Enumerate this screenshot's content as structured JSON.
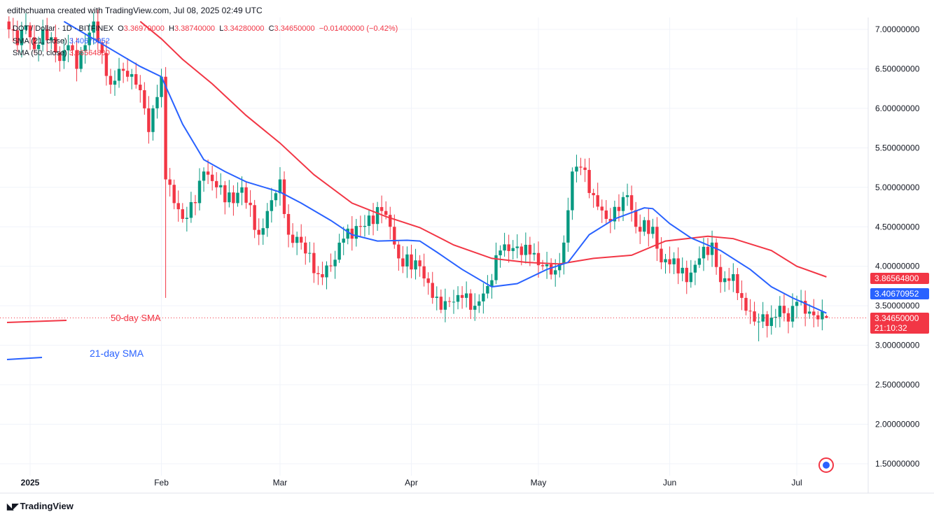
{
  "credit": "edithchuama created with TradingView.com, Jul 08, 2025 02:49 UTC",
  "legend": {
    "symbol": "DOT / Dollar · 1D · BITFINEX",
    "o_label": "O",
    "o": "3.36970000",
    "h_label": "H",
    "h": "3.38740000",
    "l_label": "L",
    "l": "3.34280000",
    "c_label": "C",
    "c": "3.34650000",
    "change": "−0.01400000 (−0.42%)",
    "sma21_label": "SMA (21, close)",
    "sma21_value": "3.40670952",
    "sma50_label": "SMA (50, close)",
    "sma50_value": "3.86564800"
  },
  "annotations": {
    "sma50": "50-day SMA",
    "sma21": "21-day SMA"
  },
  "tags": {
    "sma50": "3.86564800",
    "sma21": "3.40670952",
    "price": "3.34650000",
    "countdown": "21:10:32"
  },
  "footer": {
    "brand": "TradingView"
  },
  "colors": {
    "up": "#089981",
    "down": "#f23645",
    "sma21": "#2962ff",
    "sma50": "#f23645"
  },
  "chart_data": {
    "type": "candlestick",
    "title": "DOT / Dollar · 1D · BITFINEX",
    "ylim": [
      1.5,
      7.0
    ],
    "yticks": [
      "7.00000000",
      "6.50000000",
      "6.00000000",
      "5.50000000",
      "5.00000000",
      "4.50000000",
      "4.00000000",
      "3.50000000",
      "3.00000000",
      "2.50000000",
      "2.00000000",
      "1.50000000"
    ],
    "xticks": [
      {
        "label": "2025",
        "day": 0
      },
      {
        "label": "Feb",
        "day": 31
      },
      {
        "label": "Mar",
        "day": 59
      },
      {
        "label": "Apr",
        "day": 90
      },
      {
        "label": "May",
        "day": 120
      },
      {
        "label": "Jun",
        "day": 151
      },
      {
        "label": "Jul",
        "day": 181
      }
    ],
    "day_origin": "2025-01-01",
    "close_waypoints": [
      [
        -5,
        7.0
      ],
      [
        -3,
        6.8
      ],
      [
        -1,
        7.05
      ],
      [
        1,
        6.75
      ],
      [
        3,
        7.0
      ],
      [
        5,
        6.9
      ],
      [
        7,
        6.6
      ],
      [
        9,
        6.8
      ],
      [
        11,
        6.5
      ],
      [
        13,
        6.8
      ],
      [
        15,
        7.1
      ],
      [
        17,
        6.7
      ],
      [
        19,
        6.3
      ],
      [
        21,
        6.5
      ],
      [
        23,
        6.4
      ],
      [
        25,
        6.3
      ],
      [
        27,
        6.0
      ],
      [
        28,
        5.7
      ],
      [
        29,
        6.0
      ],
      [
        31,
        6.4
      ],
      [
        32,
        5.1
      ],
      [
        34,
        4.8
      ],
      [
        36,
        4.6
      ],
      [
        39,
        4.8
      ],
      [
        41,
        5.2
      ],
      [
        44,
        5.0
      ],
      [
        48,
        4.8
      ],
      [
        50,
        5.0
      ],
      [
        54,
        4.4
      ],
      [
        56,
        4.7
      ],
      [
        59,
        5.1
      ],
      [
        61,
        4.4
      ],
      [
        64,
        4.3
      ],
      [
        68,
        3.9
      ],
      [
        71,
        4.0
      ],
      [
        74,
        4.35
      ],
      [
        78,
        4.5
      ],
      [
        83,
        4.7
      ],
      [
        85,
        4.5
      ],
      [
        87,
        4.1
      ],
      [
        92,
        4.0
      ],
      [
        95,
        3.6
      ],
      [
        97,
        3.45
      ],
      [
        99,
        3.55
      ],
      [
        102,
        3.6
      ],
      [
        105,
        3.5
      ],
      [
        108,
        3.75
      ],
      [
        111,
        4.2
      ],
      [
        115,
        4.25
      ],
      [
        118,
        4.15
      ],
      [
        121,
        4.0
      ],
      [
        124,
        3.95
      ],
      [
        126,
        4.3
      ],
      [
        128,
        5.2
      ],
      [
        130,
        5.25
      ],
      [
        133,
        4.9
      ],
      [
        136,
        4.6
      ],
      [
        139,
        4.7
      ],
      [
        141,
        4.9
      ],
      [
        143,
        4.5
      ],
      [
        147,
        4.5
      ],
      [
        149,
        4.05
      ],
      [
        152,
        4.1
      ],
      [
        155,
        3.8
      ],
      [
        158,
        4.1
      ],
      [
        161,
        4.3
      ],
      [
        163,
        3.8
      ],
      [
        166,
        3.9
      ],
      [
        168,
        3.6
      ],
      [
        171,
        3.3
      ],
      [
        172,
        3.3
      ],
      [
        175,
        3.35
      ],
      [
        177,
        3.5
      ],
      [
        179,
        3.3
      ],
      [
        181,
        3.55
      ],
      [
        183,
        3.4
      ],
      [
        188,
        3.3465
      ]
    ],
    "low_overrides": [
      [
        32,
        3.6
      ],
      [
        172,
        3.05
      ]
    ],
    "last_candle": {
      "open": 3.3697,
      "high": 3.3874,
      "low": 3.3428,
      "close": 3.3465
    },
    "sma21": [
      [
        8,
        7.1
      ],
      [
        26,
        6.53
      ],
      [
        31,
        6.4
      ],
      [
        36,
        5.8
      ],
      [
        41,
        5.35
      ],
      [
        46,
        5.2
      ],
      [
        51,
        5.07
      ],
      [
        59,
        4.94
      ],
      [
        64,
        4.8
      ],
      [
        71,
        4.58
      ],
      [
        76,
        4.4
      ],
      [
        82,
        4.32
      ],
      [
        89,
        4.33
      ],
      [
        92,
        4.32
      ],
      [
        96,
        4.18
      ],
      [
        102,
        3.96
      ],
      [
        109,
        3.74
      ],
      [
        115,
        3.78
      ],
      [
        122,
        3.96
      ],
      [
        127,
        4.05
      ],
      [
        132,
        4.4
      ],
      [
        138,
        4.6
      ],
      [
        145,
        4.74
      ],
      [
        147,
        4.73
      ],
      [
        151,
        4.54
      ],
      [
        156,
        4.36
      ],
      [
        163,
        4.2
      ],
      [
        170,
        3.96
      ],
      [
        175,
        3.74
      ],
      [
        180,
        3.6
      ],
      [
        188,
        3.4067
      ]
    ],
    "sma50": [
      [
        26,
        7.1
      ],
      [
        31,
        6.88
      ],
      [
        36,
        6.62
      ],
      [
        43,
        6.31
      ],
      [
        51,
        5.91
      ],
      [
        59,
        5.56
      ],
      [
        67,
        5.16
      ],
      [
        76,
        4.8
      ],
      [
        84,
        4.63
      ],
      [
        92,
        4.49
      ],
      [
        100,
        4.27
      ],
      [
        109,
        4.1
      ],
      [
        117,
        4.05
      ],
      [
        125,
        4.03
      ],
      [
        133,
        4.1
      ],
      [
        142,
        4.14
      ],
      [
        150,
        4.32
      ],
      [
        160,
        4.38
      ],
      [
        166,
        4.35
      ],
      [
        175,
        4.2
      ],
      [
        181,
        4.0
      ],
      [
        188,
        3.8656
      ]
    ]
  }
}
